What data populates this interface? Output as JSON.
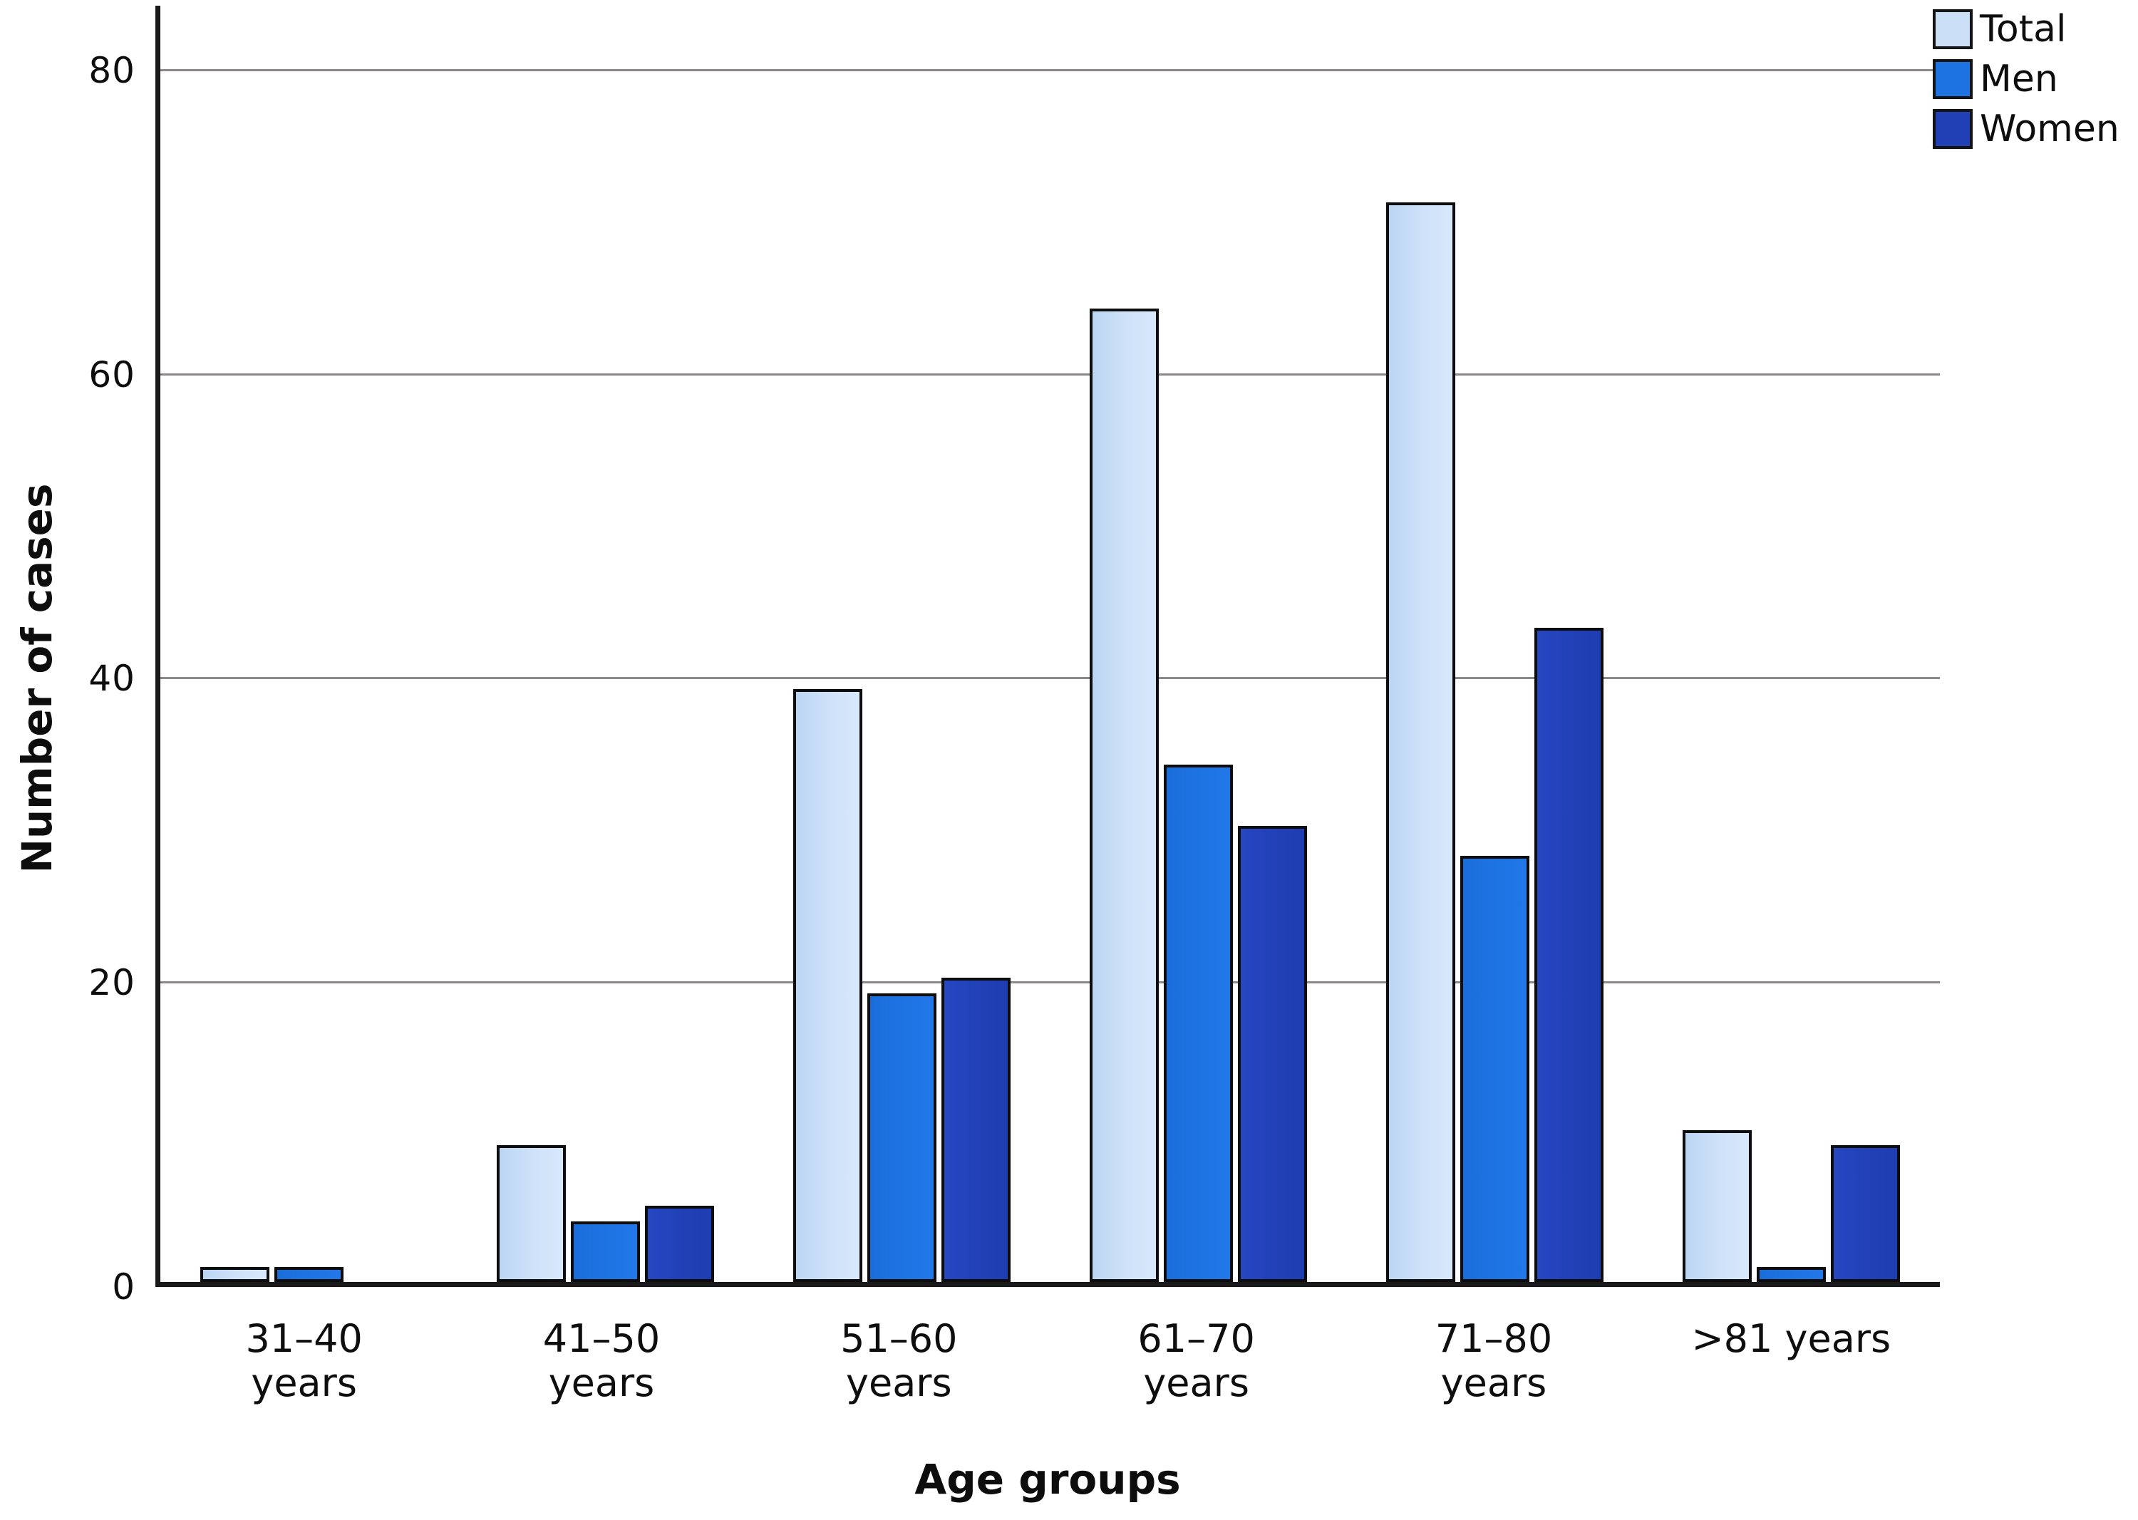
{
  "chart_data": {
    "type": "bar",
    "title": "",
    "xlabel": "Age groups",
    "ylabel": "Number of cases",
    "categories": [
      [
        "31–40",
        "years"
      ],
      [
        "41–50",
        "years"
      ],
      [
        "51–60",
        "years"
      ],
      [
        "61–70",
        "years"
      ],
      [
        "71–80",
        "years"
      ],
      [
        ">81 years"
      ]
    ],
    "series": [
      {
        "name": "Total",
        "color": "#cbdff7",
        "values": [
          1,
          9,
          39,
          64,
          71,
          10
        ]
      },
      {
        "name": "Men",
        "color": "#1e73e3",
        "values": [
          1,
          4,
          19,
          34,
          28,
          1
        ]
      },
      {
        "name": "Women",
        "color": "#2140b6",
        "values": [
          0,
          5,
          20,
          30,
          43,
          9
        ]
      }
    ],
    "yticks": [
      0,
      20,
      40,
      60,
      80
    ],
    "ylim": [
      0,
      84
    ],
    "grid": true,
    "legend_position": "top-right"
  },
  "colors": {
    "axis": "#1a1a1a",
    "gridline": "#8b8887",
    "bar_border": "#0d0d0d",
    "background": "#ffffff"
  }
}
